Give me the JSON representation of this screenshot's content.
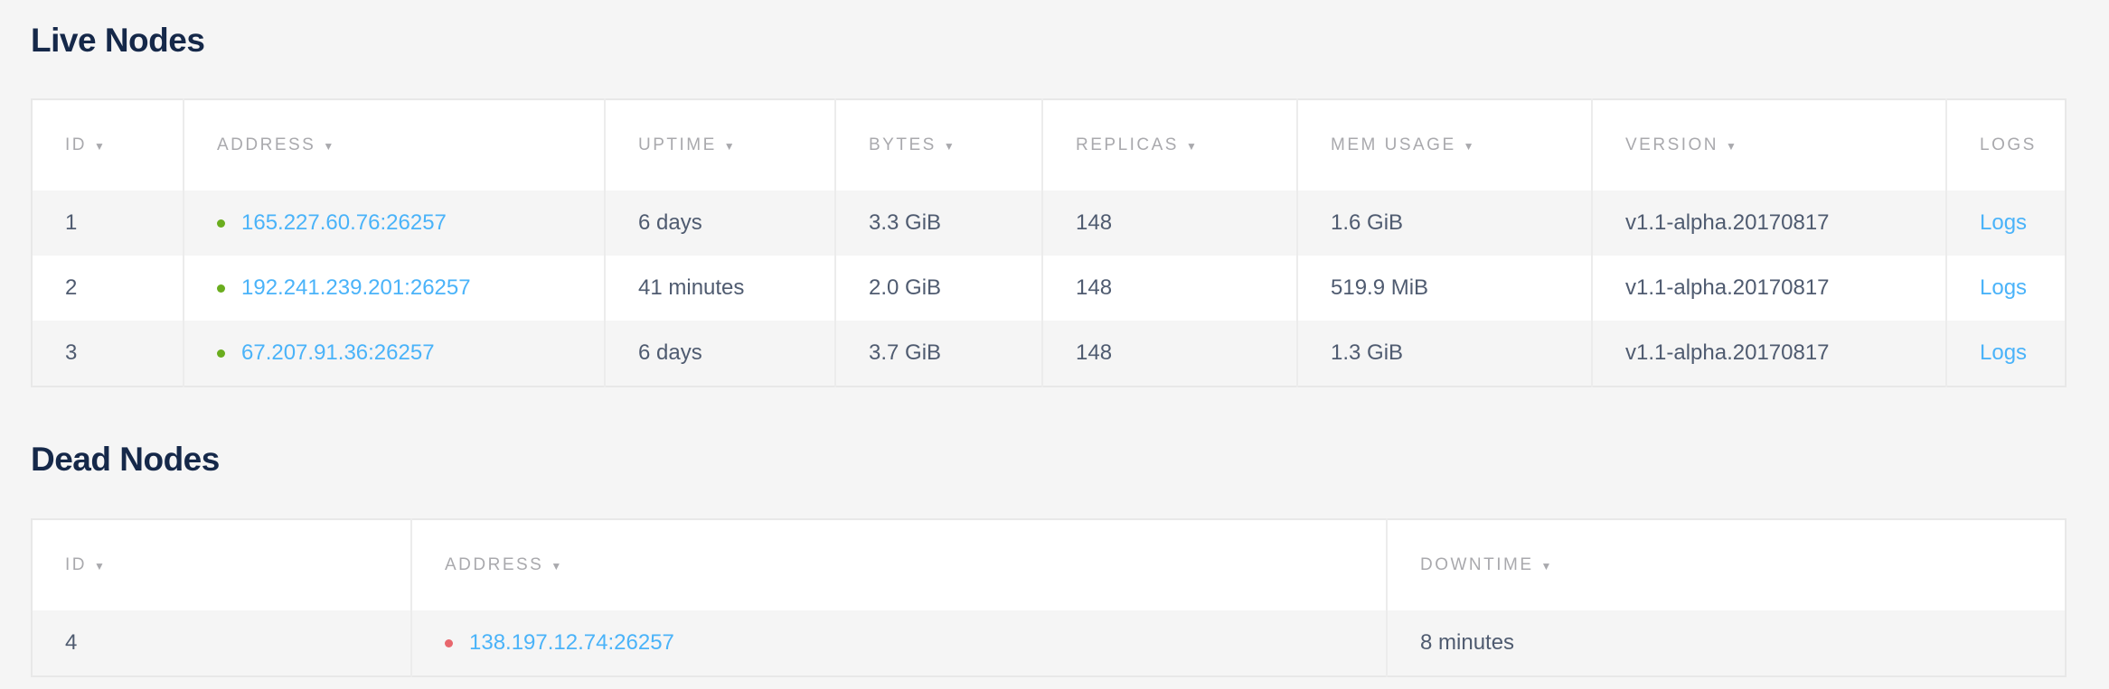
{
  "live": {
    "title": "Live Nodes",
    "columns": [
      {
        "label": "ID",
        "sort": "▼"
      },
      {
        "label": "ADDRESS",
        "sort": "▼"
      },
      {
        "label": "UPTIME",
        "sort": "▼"
      },
      {
        "label": "BYTES",
        "sort": "▼"
      },
      {
        "label": "REPLICAS",
        "sort": "▼"
      },
      {
        "label": "MEM USAGE",
        "sort": "▼"
      },
      {
        "label": "VERSION",
        "sort": "▼"
      },
      {
        "label": "LOGS",
        "sort": ""
      }
    ],
    "status_color": "#6aad1e",
    "rows": [
      {
        "id": "1",
        "address": "165.227.60.76:26257",
        "uptime": "6 days",
        "bytes": "3.3 GiB",
        "replicas": "148",
        "mem": "1.6 GiB",
        "version": "v1.1-alpha.20170817",
        "logs": "Logs"
      },
      {
        "id": "2",
        "address": "192.241.239.201:26257",
        "uptime": "41 minutes",
        "bytes": "2.0 GiB",
        "replicas": "148",
        "mem": "519.9 MiB",
        "version": "v1.1-alpha.20170817",
        "logs": "Logs"
      },
      {
        "id": "3",
        "address": "67.207.91.36:26257",
        "uptime": "6 days",
        "bytes": "3.7 GiB",
        "replicas": "148",
        "mem": "1.3 GiB",
        "version": "v1.1-alpha.20170817",
        "logs": "Logs"
      }
    ]
  },
  "dead": {
    "title": "Dead Nodes",
    "columns": [
      {
        "label": "ID",
        "sort": "▼"
      },
      {
        "label": "ADDRESS",
        "sort": "▼"
      },
      {
        "label": "DOWNTIME",
        "sort": "▼"
      }
    ],
    "status_color": "#e8676d",
    "rows": [
      {
        "id": "4",
        "address": "138.197.12.74:26257",
        "downtime": "8 minutes"
      }
    ]
  }
}
